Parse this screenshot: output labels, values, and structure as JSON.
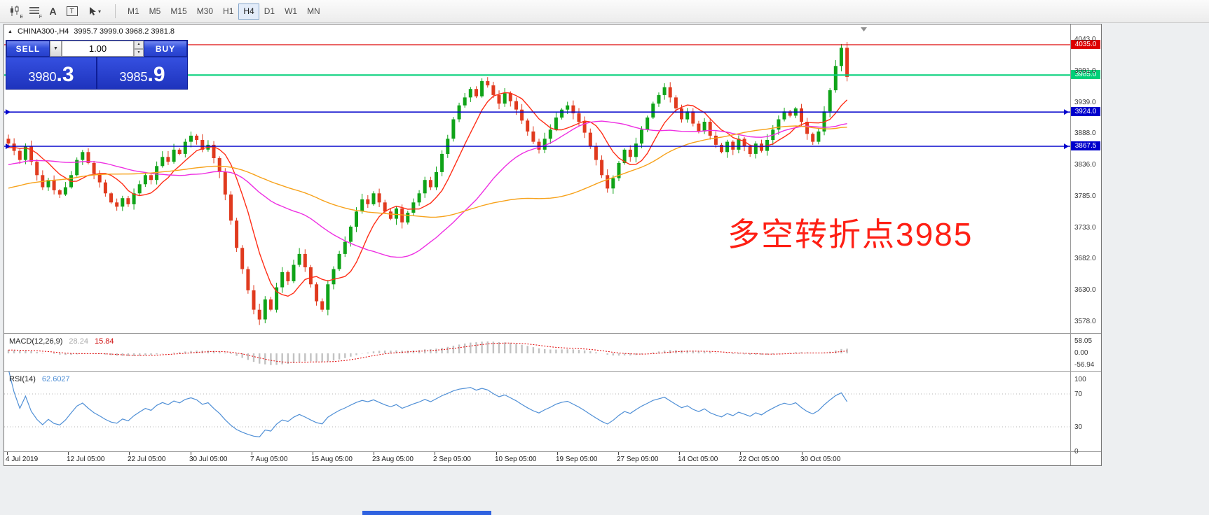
{
  "toolbar": {
    "icon_e_sub": "E",
    "icon_f_sub": "F",
    "icon_a_glyph": "A",
    "icon_t_glyph": "T",
    "draw_caret": "▾",
    "timeframes": [
      {
        "label": "M1",
        "active": false
      },
      {
        "label": "M5",
        "active": false
      },
      {
        "label": "M15",
        "active": false
      },
      {
        "label": "M30",
        "active": false
      },
      {
        "label": "H1",
        "active": false
      },
      {
        "label": "H4",
        "active": true
      },
      {
        "label": "D1",
        "active": false
      },
      {
        "label": "W1",
        "active": false
      },
      {
        "label": "MN",
        "active": false
      }
    ]
  },
  "chart": {
    "collapse_glyph": "▲",
    "title_symbol": "CHINA300-,H4",
    "ohlc_text": "3995.7 3999.0 3968.2 3981.8",
    "annotation": "多空转折点3985"
  },
  "trade_panel": {
    "sell_label": "SELL",
    "buy_label": "BUY",
    "volume": "1.00",
    "caret_down": "▼",
    "caret_up": "▲",
    "sell_price": {
      "main": "3980",
      "pips": ".3"
    },
    "buy_price": {
      "main": "3985",
      "pips": ".9"
    }
  },
  "chart_data": {
    "type": "candlestick",
    "symbol": "CHINA300-",
    "timeframe": "H4",
    "ohlc_display": {
      "open": "3995.7",
      "high": "3999.0",
      "low": "3968.2",
      "close": "3981.8"
    },
    "first_open": 3880,
    "closes": [
      3872,
      3860,
      3845,
      3868,
      3842,
      3820,
      3800,
      3812,
      3795,
      3788,
      3800,
      3820,
      3845,
      3858,
      3840,
      3822,
      3808,
      3790,
      3775,
      3768,
      3782,
      3772,
      3790,
      3805,
      3820,
      3812,
      3835,
      3850,
      3842,
      3862,
      3855,
      3875,
      3885,
      3878,
      3862,
      3870,
      3848,
      3825,
      3788,
      3745,
      3700,
      3665,
      3630,
      3598,
      3582,
      3615,
      3598,
      3635,
      3660,
      3645,
      3672,
      3690,
      3668,
      3640,
      3612,
      3598,
      3640,
      3665,
      3690,
      3710,
      3735,
      3760,
      3780,
      3772,
      3790,
      3775,
      3760,
      3748,
      3765,
      3742,
      3758,
      3775,
      3790,
      3812,
      3800,
      3825,
      3855,
      3880,
      3912,
      3935,
      3948,
      3962,
      3950,
      3975,
      3968,
      3952,
      3938,
      3955,
      3942,
      3928,
      3910,
      3892,
      3875,
      3862,
      3880,
      3895,
      3915,
      3928,
      3935,
      3922,
      3908,
      3890,
      3868,
      3845,
      3820,
      3798,
      3815,
      3840,
      3862,
      3850,
      3872,
      3895,
      3915,
      3938,
      3952,
      3965,
      3948,
      3930,
      3912,
      3925,
      3905,
      3892,
      3908,
      3885,
      3870,
      3858,
      3875,
      3862,
      3880,
      3868,
      3855,
      3872,
      3860,
      3878,
      3895,
      3912,
      3925,
      3918,
      3930,
      3908,
      3888,
      3875,
      3892,
      3925,
      3960,
      4000,
      4030,
      3982
    ],
    "candle_colors": {
      "up": "#0fa318",
      "down": "#e03a1e"
    },
    "moving_averages": [
      {
        "period": 8,
        "color": "#ff2e17"
      },
      {
        "period": 30,
        "color": "#ee2fe2"
      },
      {
        "period": 60,
        "color": "#f7a21b"
      }
    ],
    "horizontal_levels": [
      {
        "label": "4035.0",
        "value": 4035.0,
        "color": "#dd0000",
        "width": 1.2,
        "arrows": false
      },
      {
        "label": "3985.0",
        "value": 3985.0,
        "color": "#00cf78",
        "width": 2,
        "arrows": false
      },
      {
        "label": "3924.0",
        "value": 3924.0,
        "color": "#0000cc",
        "width": 1.4,
        "arrows": true
      },
      {
        "label": "3867.5",
        "value": 3867.5,
        "color": "#0000cc",
        "width": 1.4,
        "arrows": true
      }
    ],
    "y_axis_labels": [
      "4043.0",
      "3991.0",
      "3939.0",
      "3888.0",
      "3836.0",
      "3785.0",
      "3733.0",
      "3682.0",
      "3630.0",
      "3578.0"
    ],
    "y_range_at_labels": {
      "top": 4043.0,
      "bottom": 3578.0
    },
    "x_labels": [
      "4 Jul 2019",
      "12 Jul 05:00",
      "22 Jul 05:00",
      "30 Jul 05:00",
      "7 Aug 05:00",
      "15 Aug 05:00",
      "23 Aug 05:00",
      "2 Sep 05:00",
      "10 Sep 05:00",
      "19 Sep 05:00",
      "27 Sep 05:00",
      "14 Oct 05:00",
      "22 Oct 05:00",
      "30 Oct 05:00"
    ],
    "macd": {
      "label": "MACD(12,26,9)",
      "fast": 12,
      "slow": 26,
      "signal": 9,
      "value_main": "28.24",
      "value_signal": "15.84",
      "axis_labels": [
        "58.05",
        "0.00",
        "-56.94"
      ],
      "histogram_color": "#c2c2c2",
      "signal_color": "#e00000"
    },
    "rsi": {
      "label": "RSI(14)",
      "period": 14,
      "value": "62.6027",
      "axis_labels": [
        "100",
        "70",
        "30",
        "0"
      ],
      "levels": [
        70,
        30
      ],
      "line_color": "#4f8fd6"
    }
  }
}
